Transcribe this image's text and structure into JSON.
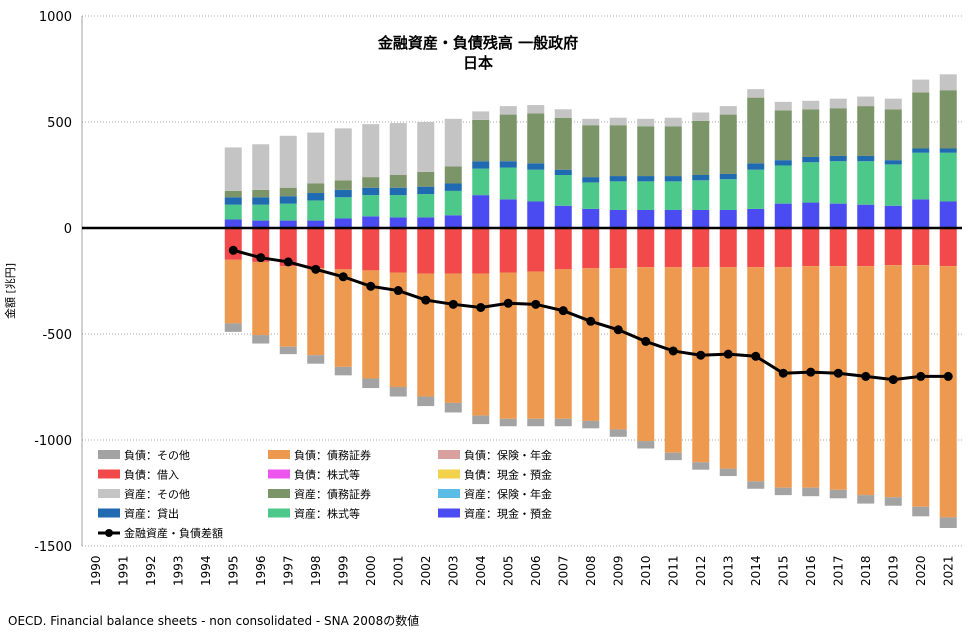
{
  "chart_data": {
    "type": "bar",
    "stacked": true,
    "title": "金融資産・負債残高 一般政府",
    "subtitle": "日本",
    "ylabel": "金額 [兆円]",
    "ylim": [
      -1500,
      1000
    ],
    "yticks": [
      1000,
      500,
      0,
      -500,
      -1000,
      -1500
    ],
    "yticklabels": [
      "1000",
      "500",
      "0",
      "-500",
      "-1000",
      "-1500"
    ],
    "categories": [
      "1990",
      "1991",
      "1992",
      "1993",
      "1994",
      "1995",
      "1996",
      "1997",
      "1998",
      "1999",
      "2000",
      "2001",
      "2002",
      "2003",
      "2004",
      "2005",
      "2006",
      "2007",
      "2008",
      "2009",
      "2010",
      "2011",
      "2012",
      "2013",
      "2014",
      "2015",
      "2016",
      "2017",
      "2018",
      "2019",
      "2020",
      "2021"
    ],
    "asset_series": [
      {
        "name": "資産：現金・預金",
        "color": "#4b4bf2",
        "values": [
          null,
          null,
          null,
          null,
          null,
          40,
          35,
          35,
          35,
          45,
          55,
          50,
          50,
          60,
          155,
          135,
          125,
          105,
          90,
          85,
          85,
          85,
          85,
          85,
          90,
          115,
          120,
          115,
          110,
          105,
          135,
          125
        ]
      },
      {
        "name": "資産：株式等",
        "color": "#4cc98a",
        "values": [
          null,
          null,
          null,
          null,
          null,
          70,
          75,
          80,
          95,
          100,
          100,
          105,
          110,
          115,
          125,
          150,
          150,
          145,
          125,
          135,
          135,
          135,
          140,
          145,
          185,
          180,
          190,
          200,
          205,
          195,
          220,
          230
        ]
      },
      {
        "name": "資産：貸出",
        "color": "#1f6ab0",
        "values": [
          null,
          null,
          null,
          null,
          null,
          35,
          35,
          35,
          35,
          35,
          35,
          35,
          35,
          35,
          35,
          30,
          30,
          25,
          25,
          25,
          25,
          25,
          25,
          25,
          30,
          25,
          25,
          25,
          25,
          20,
          20,
          20
        ]
      },
      {
        "name": "資産：保険・年金",
        "color": "#5bbde6",
        "values": [
          null,
          null,
          null,
          null,
          null,
          0,
          0,
          0,
          0,
          0,
          0,
          0,
          0,
          0,
          0,
          0,
          0,
          0,
          0,
          0,
          0,
          0,
          0,
          0,
          0,
          0,
          0,
          0,
          0,
          0,
          0,
          0
        ]
      },
      {
        "name": "資産：債務証券",
        "color": "#7b9468",
        "values": [
          null,
          null,
          null,
          null,
          null,
          30,
          35,
          40,
          45,
          45,
          50,
          60,
          70,
          80,
          195,
          220,
          235,
          245,
          245,
          240,
          235,
          235,
          255,
          280,
          310,
          235,
          225,
          225,
          235,
          240,
          265,
          275
        ]
      },
      {
        "name": "資産：その他",
        "color": "#c4c4c4",
        "values": [
          null,
          null,
          null,
          null,
          null,
          205,
          215,
          245,
          240,
          245,
          250,
          245,
          235,
          225,
          40,
          40,
          40,
          40,
          30,
          35,
          35,
          40,
          40,
          40,
          40,
          40,
          40,
          45,
          45,
          50,
          60,
          75
        ]
      }
    ],
    "liability_series": [
      {
        "name": "負債：借入",
        "color": "#f24a4a",
        "values": [
          null,
          null,
          null,
          null,
          null,
          -150,
          -160,
          -180,
          -190,
          -195,
          -200,
          -210,
          -215,
          -215,
          -215,
          -210,
          -205,
          -195,
          -190,
          -190,
          -185,
          -185,
          -185,
          -185,
          -185,
          -185,
          -180,
          -180,
          -180,
          -175,
          -175,
          -180
        ]
      },
      {
        "name": "負債：株式等",
        "color": "#ee55ee",
        "values": [
          null,
          null,
          null,
          null,
          null,
          0,
          0,
          0,
          0,
          0,
          0,
          0,
          0,
          0,
          0,
          0,
          0,
          0,
          0,
          0,
          0,
          0,
          0,
          0,
          0,
          0,
          0,
          0,
          0,
          0,
          0,
          0
        ]
      },
      {
        "name": "負債：現金・預金",
        "color": "#f2d24a",
        "values": [
          null,
          null,
          null,
          null,
          null,
          0,
          0,
          0,
          0,
          0,
          0,
          0,
          0,
          0,
          0,
          0,
          0,
          0,
          0,
          0,
          0,
          0,
          0,
          0,
          0,
          0,
          0,
          0,
          0,
          0,
          0,
          0
        ]
      },
      {
        "name": "負債：保険・年金",
        "color": "#d9a0a0",
        "values": [
          null,
          null,
          null,
          null,
          null,
          0,
          0,
          0,
          0,
          0,
          0,
          0,
          0,
          0,
          0,
          0,
          0,
          0,
          0,
          0,
          0,
          0,
          0,
          0,
          0,
          0,
          0,
          0,
          0,
          0,
          0,
          0
        ]
      },
      {
        "name": "負債：債務証券",
        "color": "#ed9a50",
        "values": [
          null,
          null,
          null,
          null,
          null,
          -300,
          -345,
          -380,
          -410,
          -460,
          -510,
          -540,
          -580,
          -610,
          -670,
          -690,
          -695,
          -705,
          -720,
          -760,
          -820,
          -875,
          -920,
          -950,
          -1010,
          -1040,
          -1045,
          -1055,
          -1080,
          -1095,
          -1140,
          -1185
        ]
      },
      {
        "name": "負債：その他",
        "color": "#a3a3a3",
        "values": [
          null,
          null,
          null,
          null,
          null,
          -40,
          -40,
          -35,
          -40,
          -40,
          -45,
          -45,
          -45,
          -45,
          -40,
          -35,
          -35,
          -35,
          -35,
          -35,
          -35,
          -35,
          -35,
          -35,
          -35,
          -35,
          -40,
          -40,
          -40,
          -40,
          -45,
          -50
        ]
      }
    ],
    "net_series": {
      "name": "金融資産・負債差額",
      "color": "#000000",
      "values": [
        null,
        null,
        null,
        null,
        null,
        -105,
        -140,
        -160,
        -195,
        -230,
        -275,
        -295,
        -340,
        -360,
        -375,
        -355,
        -360,
        -390,
        -440,
        -480,
        -535,
        -580,
        -600,
        -595,
        -605,
        -685,
        -680,
        -685,
        -700,
        -715,
        -700,
        -700
      ]
    },
    "legend": [
      {
        "label": "負債：その他",
        "color": "#a3a3a3",
        "kind": "bar"
      },
      {
        "label": "負債：債務証券",
        "color": "#ed9a50",
        "kind": "bar"
      },
      {
        "label": "負債：保険・年金",
        "color": "#d9a0a0",
        "kind": "bar"
      },
      {
        "label": "負債：借入",
        "color": "#f24a4a",
        "kind": "bar"
      },
      {
        "label": "負債：株式等",
        "color": "#ee55ee",
        "kind": "bar"
      },
      {
        "label": "負債：現金・預金",
        "color": "#f2d24a",
        "kind": "bar"
      },
      {
        "label": "資産：その他",
        "color": "#c4c4c4",
        "kind": "bar"
      },
      {
        "label": "資産：債務証券",
        "color": "#7b9468",
        "kind": "bar"
      },
      {
        "label": "資産：保険・年金",
        "color": "#5bbde6",
        "kind": "bar"
      },
      {
        "label": "資産：貸出",
        "color": "#1f6ab0",
        "kind": "bar"
      },
      {
        "label": "資産：株式等",
        "color": "#4cc98a",
        "kind": "bar"
      },
      {
        "label": "資産：現金・預金",
        "color": "#4b4bf2",
        "kind": "bar"
      },
      {
        "label": "金融資産・負債差額",
        "color": "#000000",
        "kind": "line"
      }
    ],
    "legend_position": "bottom-left",
    "grid": true
  },
  "source_note": "OECD. Financial balance sheets - non consolidated - SNA 2008の数値"
}
